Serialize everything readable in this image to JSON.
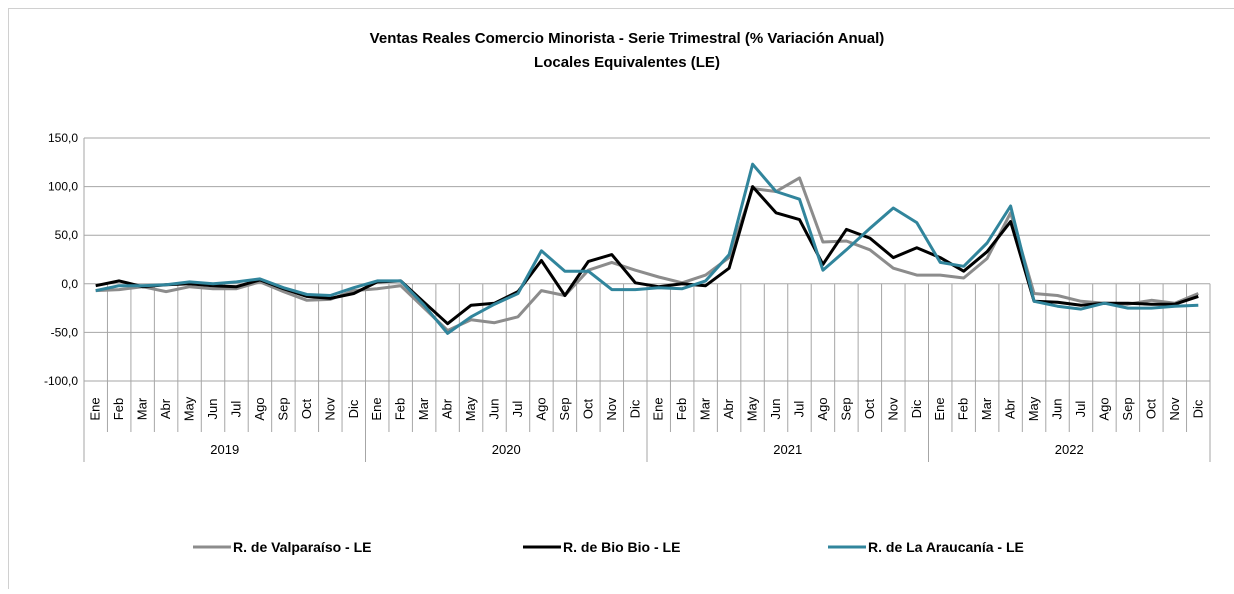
{
  "chart_data": {
    "type": "line",
    "title": "Ventas Reales Comercio Minorista - Serie Trimestral (% Variación Anual)",
    "subtitle": "Locales Equivalentes (LE)",
    "categories": [
      "Ene",
      "Feb",
      "Mar",
      "Abr",
      "May",
      "Jun",
      "Jul",
      "Ago",
      "Sep",
      "Oct",
      "Nov",
      "Dic",
      "Ene",
      "Feb",
      "Mar",
      "Abr",
      "May",
      "Jun",
      "Jul",
      "Ago",
      "Sep",
      "Oct",
      "Nov",
      "Dic",
      "Ene",
      "Feb",
      "Mar",
      "Abr",
      "May",
      "Jun",
      "Jul",
      "Ago",
      "Sep",
      "Oct",
      "Nov",
      "Dic",
      "Ene",
      "Feb",
      "Mar",
      "Abr",
      "May",
      "Jun",
      "Jul",
      "Ago",
      "Sep",
      "Oct",
      "Nov",
      "Dic"
    ],
    "years": [
      "2019",
      "2020",
      "2021",
      "2022"
    ],
    "ylim": [
      -100,
      150
    ],
    "yticks": [
      {
        "value": -100,
        "label": "-100,0"
      },
      {
        "value": -50,
        "label": "-50,0"
      },
      {
        "value": 0,
        "label": "0,0"
      },
      {
        "value": 50,
        "label": "50,0"
      },
      {
        "value": 100,
        "label": "100,0"
      },
      {
        "value": 150,
        "label": "150,0"
      }
    ],
    "grid": true,
    "legend": "bottom",
    "series": [
      {
        "name": "R. de Valparaíso - LE",
        "color": "#8c8c8c",
        "values": [
          -7,
          -6,
          -3,
          -8,
          -3,
          -5,
          -5,
          2,
          -8,
          -17,
          -16,
          -7,
          -5,
          -2,
          -25,
          -48,
          -37,
          -40,
          -34,
          -7,
          -12,
          14,
          22,
          14,
          7,
          1,
          9,
          27,
          98,
          95,
          109,
          43,
          44,
          35,
          16,
          9,
          9,
          6,
          26,
          73,
          -10,
          -12,
          -18,
          -20,
          -21,
          -17,
          -20,
          -10
        ]
      },
      {
        "name": "R. de Bio Bio - LE",
        "color": "#000000",
        "values": [
          -2,
          3,
          -3,
          -1,
          0,
          -2,
          -3,
          4,
          -5,
          -13,
          -15,
          -10,
          2,
          3,
          -19,
          -41,
          -22,
          -20,
          -8,
          24,
          -12,
          23,
          30,
          1,
          -3,
          0,
          -2,
          16,
          100,
          73,
          66,
          20,
          56,
          47,
          27,
          37,
          27,
          13,
          33,
          64,
          -18,
          -19,
          -22,
          -20,
          -20,
          -21,
          -21,
          -13
        ]
      },
      {
        "name": "R. de La Araucanía - LE",
        "color": "#31859c",
        "values": [
          -7,
          -2,
          -2,
          -1,
          2,
          0,
          2,
          5,
          -4,
          -11,
          -12,
          -4,
          3,
          3,
          -22,
          -51,
          -34,
          -21,
          -10,
          34,
          13,
          13,
          -6,
          -6,
          -4,
          -5,
          3,
          30,
          123,
          95,
          87,
          14,
          35,
          57,
          78,
          63,
          22,
          18,
          42,
          80,
          -18,
          -23,
          -26,
          -20,
          -25,
          -25,
          -23,
          -22
        ]
      }
    ]
  }
}
